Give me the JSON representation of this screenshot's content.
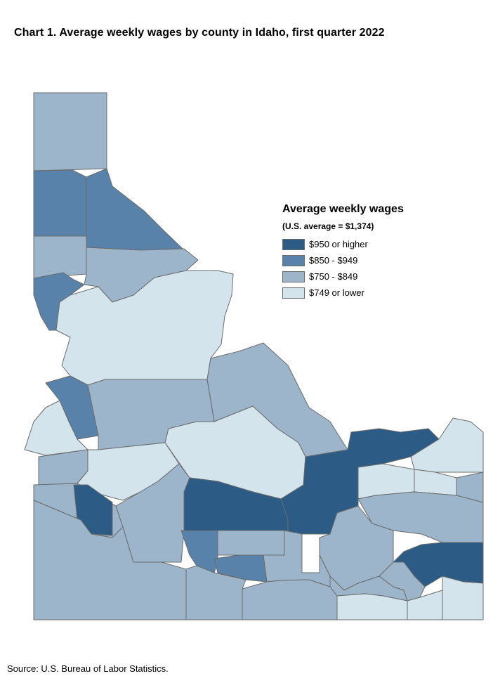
{
  "title": "Chart 1. Average weekly wages by county in Idaho, first quarter 2022",
  "legend": {
    "title": "Average weekly wages",
    "subtitle": "(U.S. average = $1,374)",
    "items": [
      {
        "label": "$950 or higher",
        "color": "#2c5c86"
      },
      {
        "label": "$850 - $949",
        "color": "#5882aa"
      },
      {
        "label": "$750 - $849",
        "color": "#9db5cb"
      },
      {
        "label": "$749 or lower",
        "color": "#d3e4ec"
      }
    ]
  },
  "source": "Source: U.S. Bureau of Labor Statistics."
}
